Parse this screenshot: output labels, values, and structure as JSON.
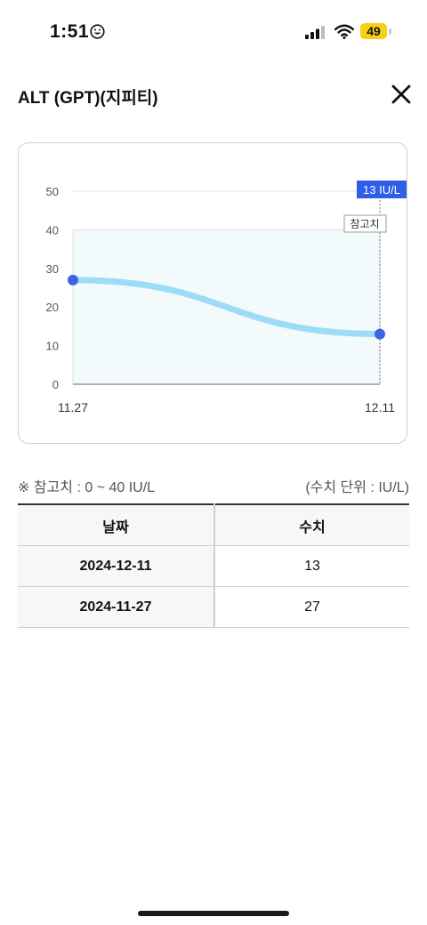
{
  "status": {
    "time": "1:51",
    "battery": "49"
  },
  "header": {
    "title": "ALT (GPT)(지피티)"
  },
  "chart_data": {
    "type": "line",
    "categories": [
      "11.27",
      "12.11"
    ],
    "values": [
      27,
      13
    ],
    "yticks": [
      0,
      10,
      20,
      30,
      40,
      50
    ],
    "ylim": [
      0,
      50
    ],
    "reference_range": [
      0,
      40
    ],
    "reference_label": "참고치",
    "tooltip": "13 IU/L",
    "colors": {
      "line": "#9ddcf6",
      "point": "#3b63e6",
      "band": "#f3fafc",
      "tooltip": "#2f5fe6"
    }
  },
  "notes": {
    "reference": "※ 참고치 : 0 ~ 40 IU/L",
    "unit": "(수치 단위 : IU/L)"
  },
  "table": {
    "headers": [
      "날짜",
      "수치"
    ],
    "rows": [
      {
        "date": "2024-12-11",
        "value": "13"
      },
      {
        "date": "2024-11-27",
        "value": "27"
      }
    ]
  }
}
